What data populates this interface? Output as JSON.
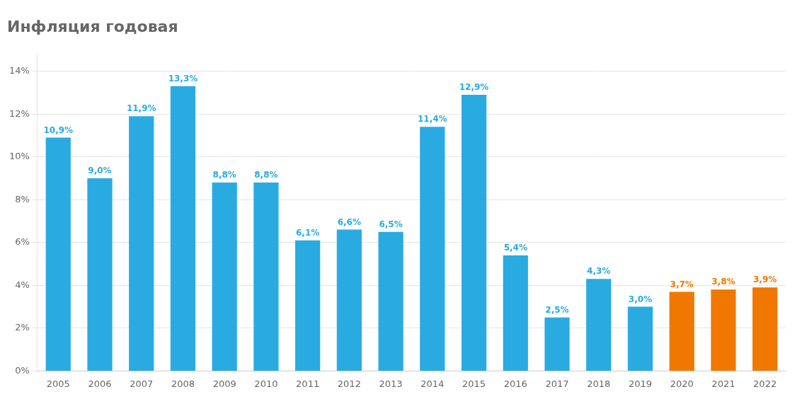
{
  "chart_data": {
    "type": "bar",
    "title": "Инфляция годовая",
    "categories": [
      "2005",
      "2006",
      "2007",
      "2008",
      "2009",
      "2010",
      "2011",
      "2012",
      "2013",
      "2014",
      "2015",
      "2016",
      "2017",
      "2018",
      "2019",
      "2020",
      "2021",
      "2022"
    ],
    "values": [
      10.9,
      9.0,
      11.9,
      13.3,
      8.8,
      8.8,
      6.1,
      6.6,
      6.5,
      11.4,
      12.9,
      5.4,
      2.5,
      4.3,
      3.0,
      3.7,
      3.8,
      3.9
    ],
    "value_labels": [
      "10,9%",
      "9,0%",
      "11,9%",
      "13,3%",
      "8,8%",
      "8,8%",
      "6,1%",
      "6,6%",
      "6,5%",
      "11,4%",
      "12,9%",
      "5,4%",
      "2,5%",
      "4,3%",
      "3,0%",
      "3,7%",
      "3,8%",
      "3,9%"
    ],
    "colors": [
      "#29abe2",
      "#29abe2",
      "#29abe2",
      "#29abe2",
      "#29abe2",
      "#29abe2",
      "#29abe2",
      "#29abe2",
      "#29abe2",
      "#29abe2",
      "#29abe2",
      "#29abe2",
      "#29abe2",
      "#29abe2",
      "#29abe2",
      "#f07800",
      "#f07800",
      "#f07800"
    ],
    "ylim": [
      0,
      14.8
    ],
    "yticks": [
      {
        "value": 0,
        "label": "0%"
      },
      {
        "value": 2,
        "label": "2%"
      },
      {
        "value": 4,
        "label": "4%"
      },
      {
        "value": 6,
        "label": "6%"
      },
      {
        "value": 8,
        "label": "8%"
      },
      {
        "value": 10,
        "label": "10%"
      },
      {
        "value": 12,
        "label": "12%"
      },
      {
        "value": 14,
        "label": "14%"
      }
    ],
    "grid": true,
    "data_labels": true
  }
}
